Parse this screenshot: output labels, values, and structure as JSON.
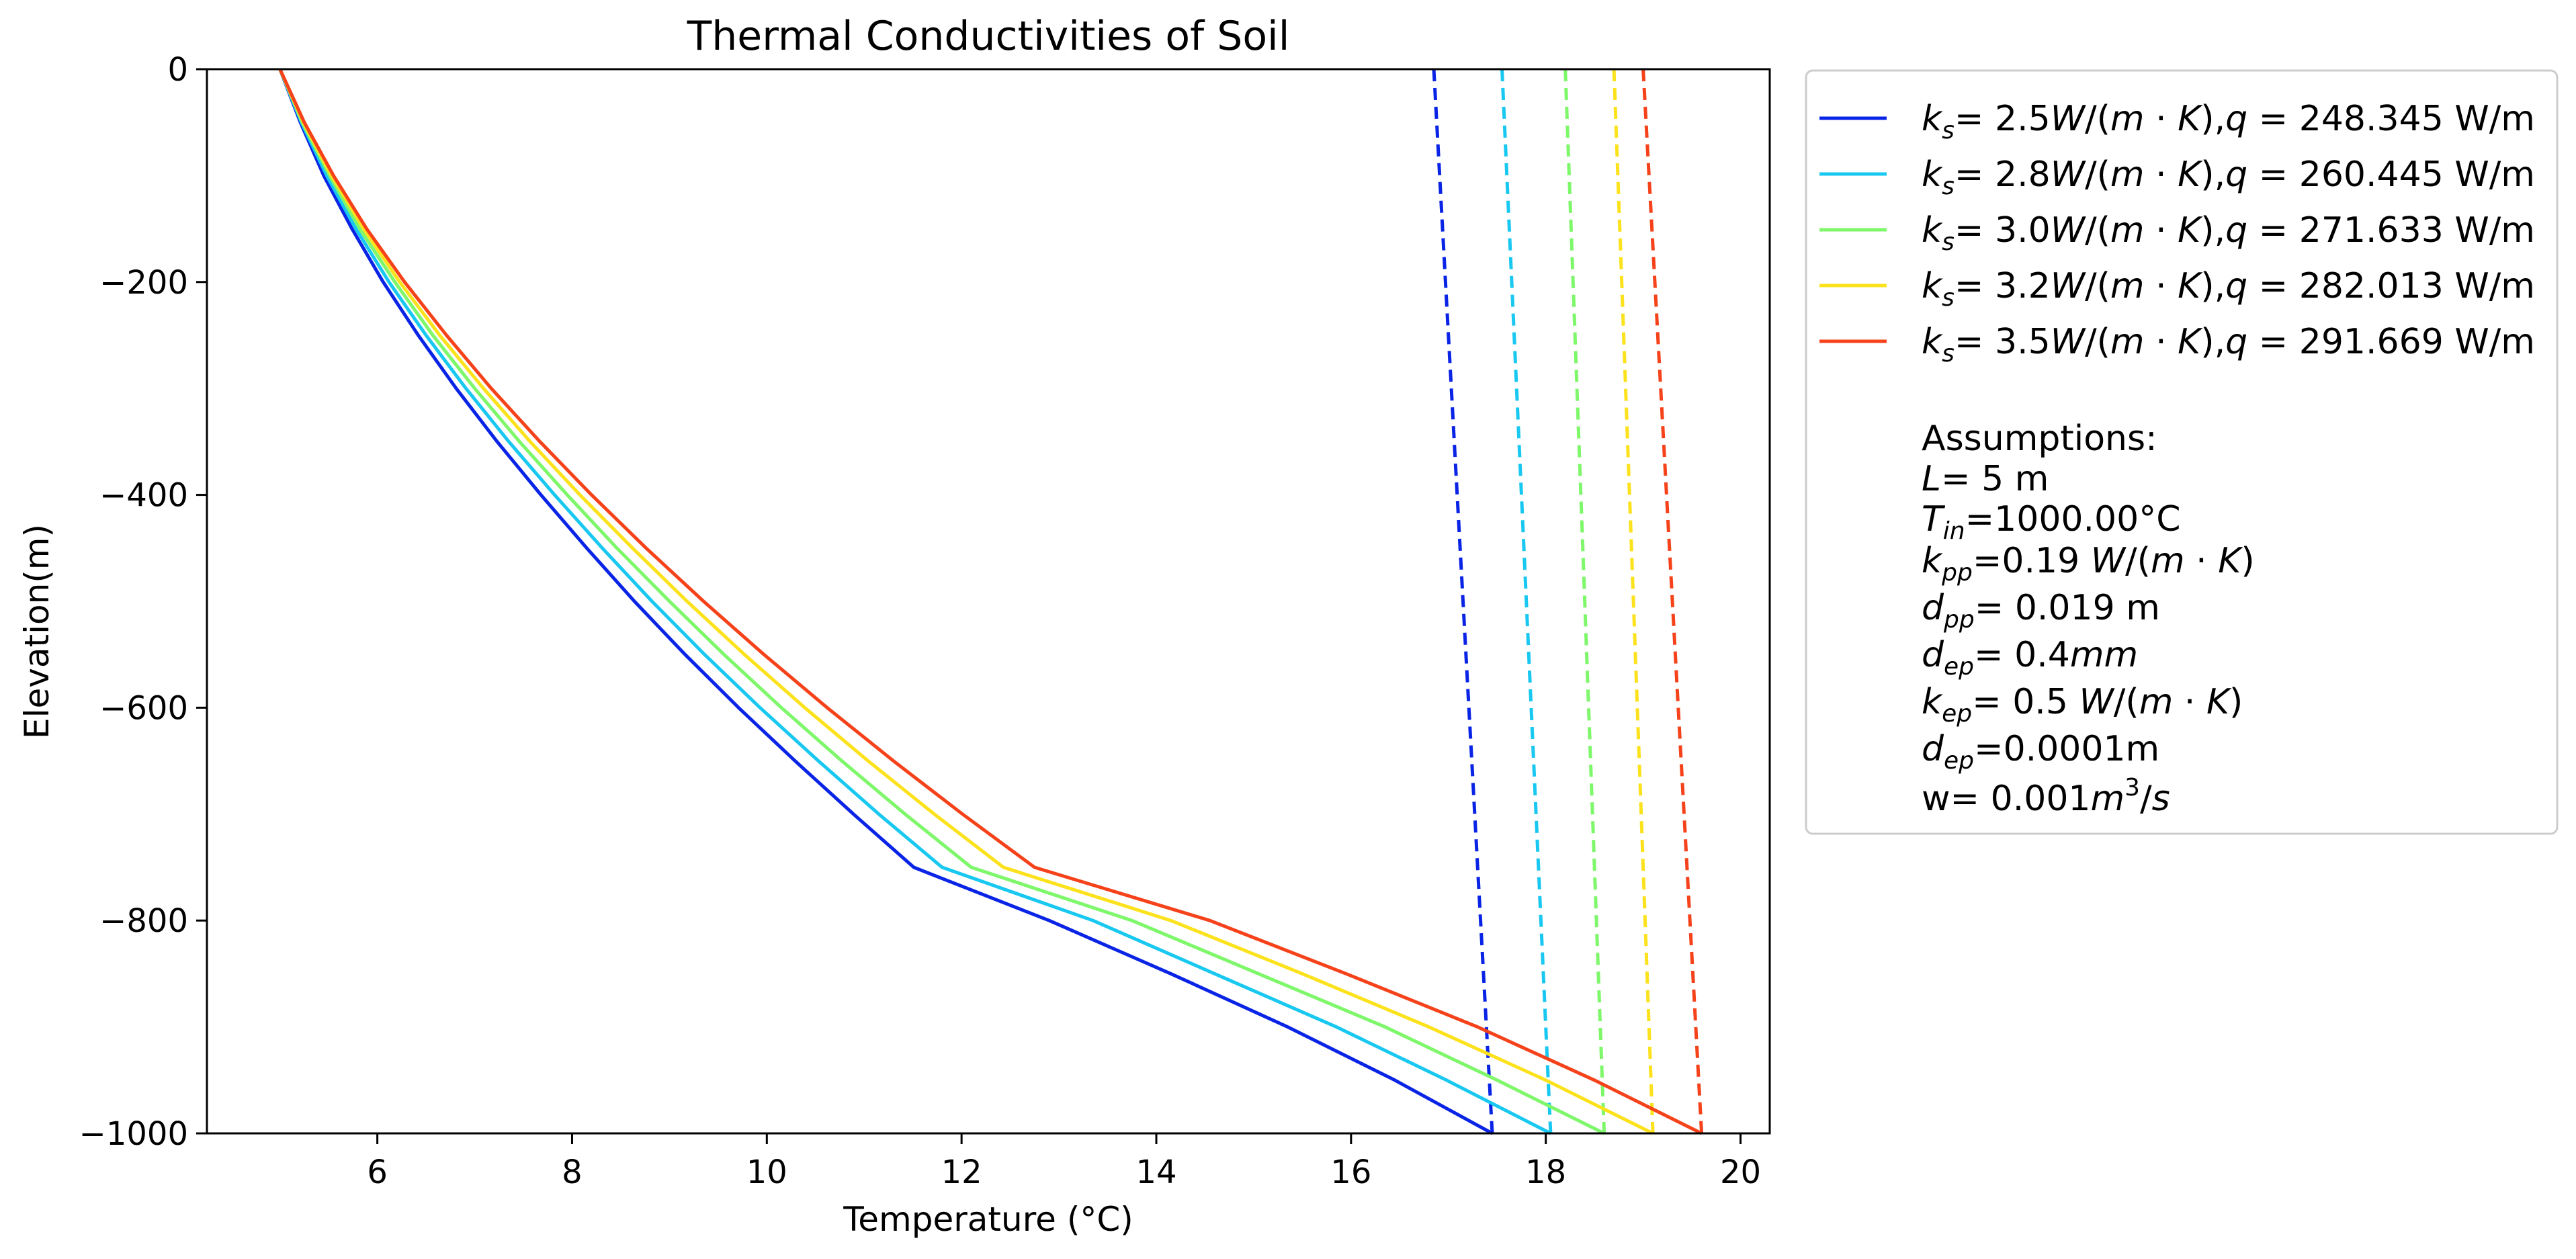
{
  "chart_data": {
    "type": "line",
    "title": "Thermal Conductivities of Soil",
    "xlabel": "Temperature (°C)",
    "ylabel": "Elevation(m)",
    "xlim": [
      4.25,
      20.3
    ],
    "ylim": [
      -1000,
      0
    ],
    "xticks": [
      6,
      8,
      10,
      12,
      14,
      16,
      18,
      20
    ],
    "yticks": [
      0,
      -200,
      -400,
      -600,
      -800,
      -1000
    ],
    "grid": false,
    "legend_position": "outside-right",
    "series": [
      {
        "name": "k_s= 2.5W/(m·K),q = 248.345 W/m",
        "legend": {
          "k": "2.5",
          "q": "248.345"
        },
        "color": "#0a24e6",
        "solid": {
          "y": [
            0,
            -50,
            -100,
            -150,
            -200,
            -250,
            -300,
            -350,
            -400,
            -450,
            -500,
            -550,
            -600,
            -650,
            -700,
            -750,
            -800,
            -850,
            -900,
            -950,
            -1000
          ],
          "x": [
            5.0,
            5.21,
            5.45,
            5.74,
            6.06,
            6.42,
            6.81,
            7.23,
            7.68,
            8.15,
            8.64,
            9.16,
            9.71,
            10.29,
            10.89,
            11.51,
            12.9,
            14.15,
            15.35,
            16.45,
            17.45
          ]
        },
        "dashed": {
          "y": [
            0,
            -1000
          ],
          "x": [
            16.85,
            17.45
          ]
        }
      },
      {
        "name": "k_s= 2.8W/(m·K),q = 260.445 W/m",
        "legend": {
          "k": "2.8",
          "q": "260.445"
        },
        "color": "#19c8f0",
        "solid": {
          "y": [
            0,
            -50,
            -100,
            -150,
            -200,
            -250,
            -300,
            -350,
            -400,
            -450,
            -500,
            -550,
            -600,
            -650,
            -700,
            -750,
            -800,
            -850,
            -900,
            -950,
            -1000
          ],
          "x": [
            5.0,
            5.22,
            5.48,
            5.78,
            6.12,
            6.5,
            6.91,
            7.35,
            7.82,
            8.31,
            8.82,
            9.36,
            9.93,
            10.53,
            11.15,
            11.8,
            13.35,
            14.6,
            15.85,
            16.98,
            18.05
          ]
        },
        "dashed": {
          "y": [
            0,
            -1000
          ],
          "x": [
            17.55,
            18.05
          ]
        }
      },
      {
        "name": "k_s= 3.0W/(m·K),q = 271.633 W/m",
        "legend": {
          "k": "3.0",
          "q": "271.633"
        },
        "color": "#7ef76a",
        "solid": {
          "y": [
            0,
            -50,
            -100,
            -150,
            -200,
            -250,
            -300,
            -350,
            -400,
            -450,
            -500,
            -550,
            -600,
            -650,
            -700,
            -750,
            -800,
            -850,
            -900,
            -950,
            -1000
          ],
          "x": [
            5.0,
            5.23,
            5.51,
            5.82,
            6.18,
            6.57,
            7.0,
            7.46,
            7.95,
            8.46,
            9.0,
            9.56,
            10.15,
            10.77,
            11.42,
            12.1,
            13.75,
            15.05,
            16.35,
            17.5,
            18.6
          ]
        },
        "dashed": {
          "y": [
            0,
            -1000
          ],
          "x": [
            18.2,
            18.6
          ]
        }
      },
      {
        "name": "k_s= 3.2W/(m·K),q = 282.013 W/m",
        "legend": {
          "k": "3.2",
          "q": "282.013"
        },
        "color": "#fce21c",
        "solid": {
          "y": [
            0,
            -50,
            -100,
            -150,
            -200,
            -250,
            -300,
            -350,
            -400,
            -450,
            -500,
            -550,
            -600,
            -650,
            -700,
            -750,
            -800,
            -850,
            -900,
            -950,
            -1000
          ],
          "x": [
            5.0,
            5.24,
            5.53,
            5.86,
            6.23,
            6.64,
            7.09,
            7.57,
            8.08,
            8.62,
            9.18,
            9.77,
            10.39,
            11.04,
            11.72,
            12.43,
            14.15,
            15.5,
            16.8,
            18.0,
            19.1
          ]
        },
        "dashed": {
          "y": [
            0,
            -1000
          ],
          "x": [
            18.7,
            19.1
          ]
        }
      },
      {
        "name": "k_s= 3.5W/(m·K),q = 291.669 W/m",
        "legend": {
          "k": "3.5",
          "q": "291.669"
        },
        "color": "#f5421a",
        "solid": {
          "y": [
            0,
            -50,
            -100,
            -150,
            -200,
            -250,
            -300,
            -350,
            -400,
            -450,
            -500,
            -550,
            -600,
            -650,
            -700,
            -750,
            -800,
            -850,
            -900,
            -950,
            -1000
          ],
          "x": [
            5.0,
            5.25,
            5.55,
            5.89,
            6.28,
            6.71,
            7.17,
            7.67,
            8.2,
            8.76,
            9.35,
            9.97,
            10.62,
            11.3,
            12.01,
            12.75,
            14.55,
            15.95,
            17.3,
            18.5,
            19.6
          ]
        },
        "dashed": {
          "y": [
            0,
            -1000
          ],
          "x": [
            19.0,
            19.6
          ]
        }
      }
    ],
    "assumptions": {
      "heading": "Assumptions:",
      "L": "= 5 m",
      "Tin": "=1000.00°C",
      "kpp": "=0.19",
      "dpp": "= 0.019 m",
      "dep1": "= 0.4",
      "kep": "= 0.5",
      "dep2": "=0.0001m",
      "w": "w= 0.001"
    }
  }
}
